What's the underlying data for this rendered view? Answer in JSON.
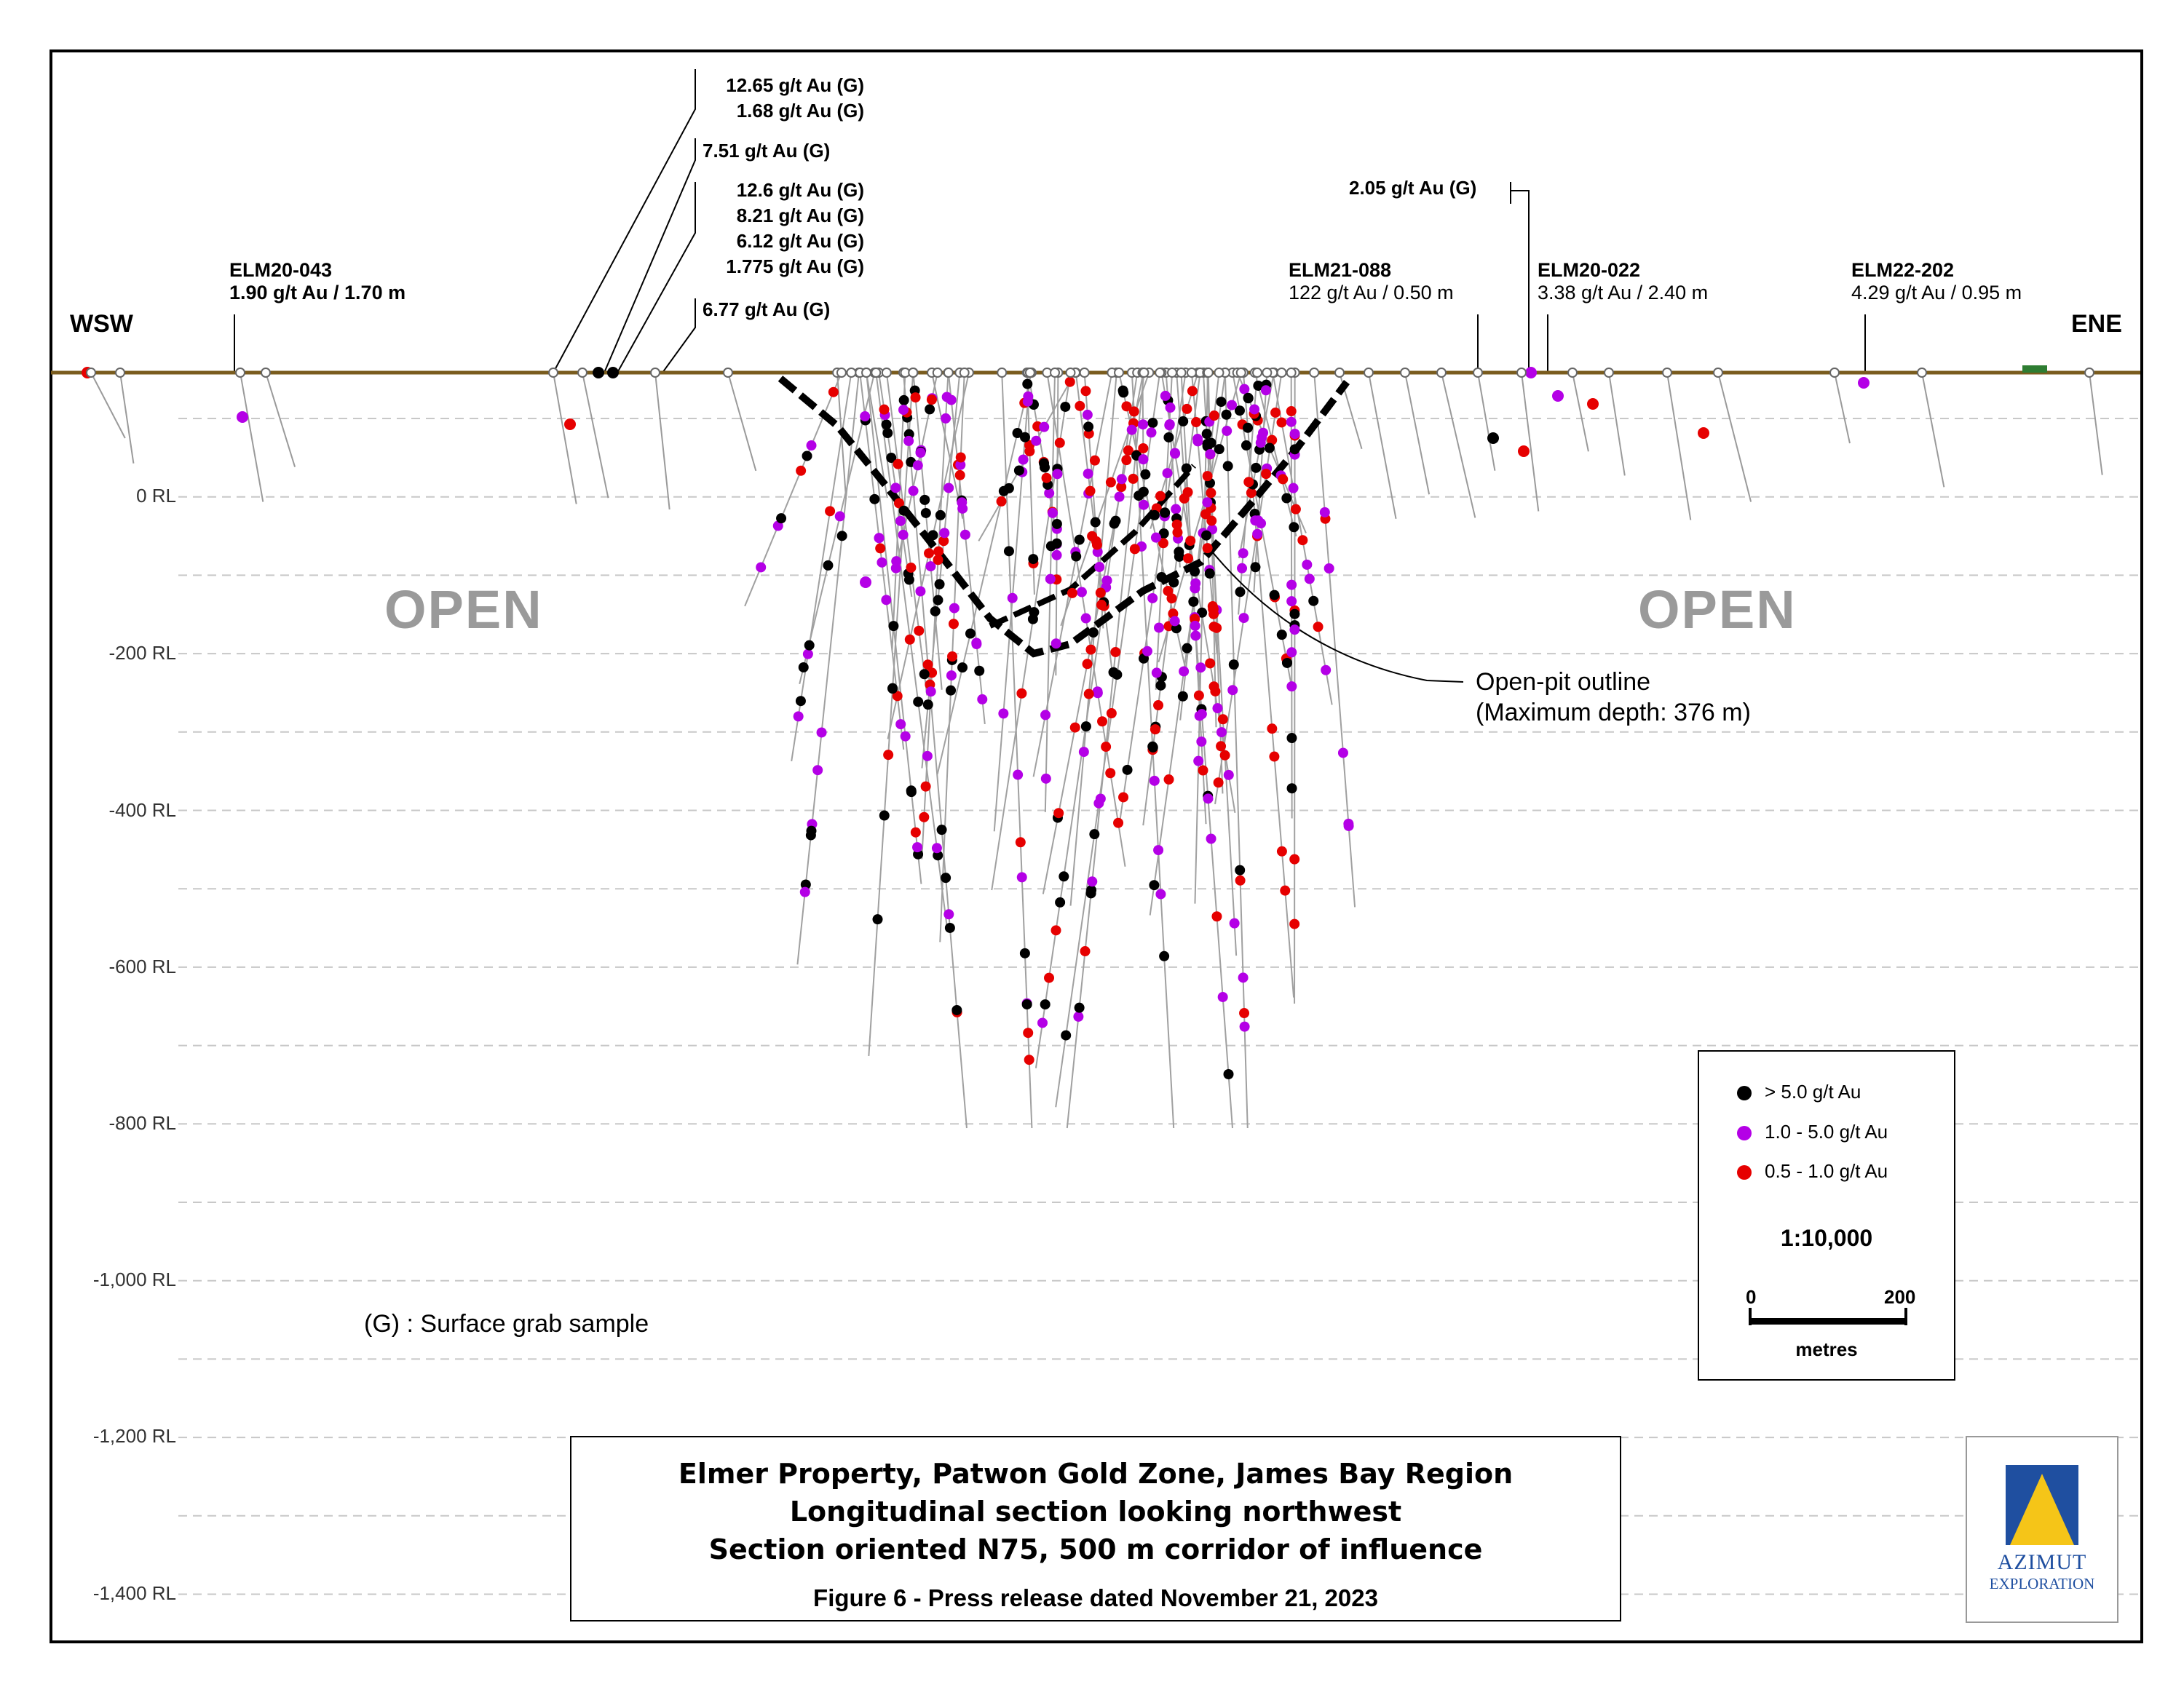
{
  "directions": {
    "west": "WSW",
    "east": "ENE"
  },
  "elevation_labels": [
    "0 RL",
    "-200 RL",
    "-400 RL",
    "-600 RL",
    "-800 RL",
    "-1,000 RL",
    "-1,200 RL",
    "-1,400 RL"
  ],
  "open_labels": [
    "OPEN",
    "OPEN"
  ],
  "drill_holes": [
    {
      "name": "ELM20-043",
      "intercept": "1.90 g/t Au / 1.70 m"
    },
    {
      "name": "ELM21-088",
      "intercept": "122 g/t Au / 0.50 m"
    },
    {
      "name": "ELM20-022",
      "intercept": "3.38 g/t Au / 2.40 m"
    },
    {
      "name": "ELM22-202",
      "intercept": "4.29 g/t Au / 0.95 m"
    }
  ],
  "grab_samples": {
    "group1": [
      "12.65 g/t Au (G)",
      "1.68 g/t Au (G)"
    ],
    "group2": [
      "7.51 g/t Au (G)"
    ],
    "group3": [
      "12.6 g/t Au (G)",
      "8.21 g/t Au (G)",
      "6.12 g/t Au (G)",
      "1.775 g/t Au (G)"
    ],
    "group4": [
      "6.77 g/t Au (G)"
    ],
    "east": "2.05 g/t Au (G)"
  },
  "pit_note": {
    "line1": "Open-pit outline",
    "line2": "(Maximum depth: 376 m)"
  },
  "grab_note": "(G) : Surface grab sample",
  "legend": {
    "items": [
      {
        "label": "> 5.0 g/t Au",
        "color": "#000000"
      },
      {
        "label": "1.0 - 5.0 g/t Au",
        "color": "#b400e6"
      },
      {
        "label": "0.5 - 1.0 g/t Au",
        "color": "#e60000"
      }
    ],
    "scale_ratio": "1:10,000",
    "scale_min": "0",
    "scale_max": "200",
    "scale_unit": "metres"
  },
  "title": {
    "line1": "Elmer Property, Patwon Gold Zone, James Bay Region",
    "line2": "Longitudinal section looking northwest",
    "line3": "Section oriented N75, 500 m corridor of influence",
    "caption": "Figure 6 - Press release dated November 21, 2023"
  },
  "logo": {
    "name": "AZIMUT",
    "sub": "EXPLORATION"
  },
  "colors": {
    "surface": "#7a5c1e",
    "high_grade": "#000000",
    "mid_grade": "#b400e6",
    "low_grade": "#e60000",
    "open_text": "#9a9a9a",
    "logo_blue": "#1f4fa0",
    "logo_gold": "#f5c518"
  }
}
